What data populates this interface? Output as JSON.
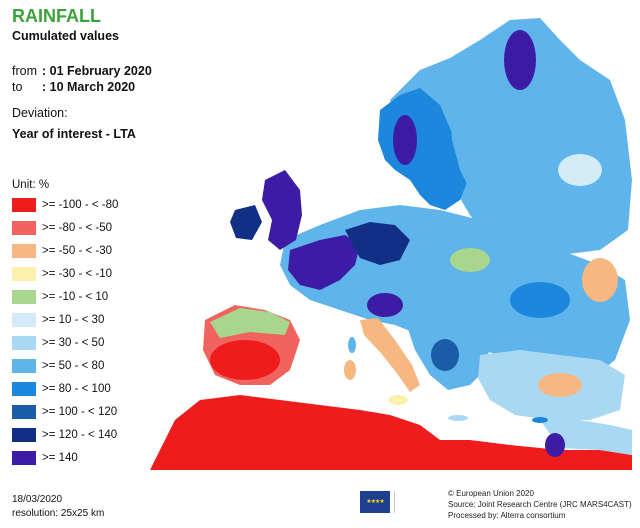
{
  "header": {
    "title": "RAINFALL",
    "subtitle": "Cumulated values",
    "from_label": "from",
    "from_value": ": 01 February 2020",
    "to_label": "to",
    "to_value": ": 10 March 2020",
    "deviation_label": "Deviation:",
    "deviation_value": "Year of interest - LTA"
  },
  "legend": {
    "unit": "Unit:  %",
    "items": [
      {
        "label": ">= -100 - < -80",
        "color": "#ee1c1c"
      },
      {
        "label": ">= -80 - < -50",
        "color": "#f0635e"
      },
      {
        "label": ">= -50 - < -30",
        "color": "#f6b880"
      },
      {
        "label": ">= -30 - < -10",
        "color": "#fbf0ad"
      },
      {
        "label": ">= -10 - < 10",
        "color": "#a9d68f"
      },
      {
        "label": ">= 10 - < 30",
        "color": "#d4ebf8"
      },
      {
        "label": ">= 30 - < 50",
        "color": "#a9d8f3"
      },
      {
        "label": ">= 50 - < 80",
        "color": "#5fb4ec"
      },
      {
        "label": ">= 80 - < 100",
        "color": "#1c87dd"
      },
      {
        "label": ">= 100 - < 120",
        "color": "#1a5ca6"
      },
      {
        "label": ">= 120 - < 140",
        "color": "#112f85"
      },
      {
        "label": ">= 140",
        "color": "#3d1ca5"
      }
    ]
  },
  "footer": {
    "date": "18/03/2020",
    "resolution": "resolution: 25x25 km",
    "credit_1": "© European Union 2020",
    "credit_2": "Source: Joint Research Centre (JRC MARS4CAST)",
    "credit_3": "Processed by: Alterra consortium"
  },
  "map_colors": {
    "sea": "#ffffff",
    "non_eu_land": "#e8e8e8",
    "border": "#ffffff"
  },
  "icons": {
    "eu_logo": "eu-flag-icon"
  }
}
